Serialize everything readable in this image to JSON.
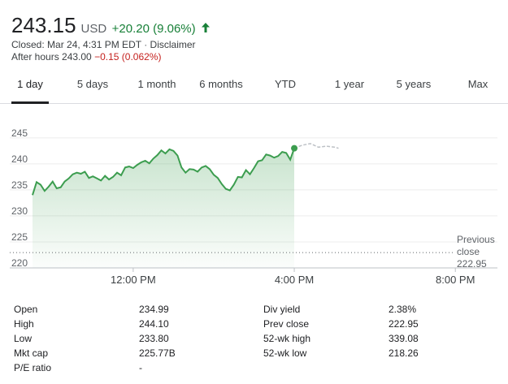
{
  "quote": {
    "price": "243.15",
    "currency": "USD",
    "change": "+20.20 (9.06%)",
    "closed_text": "Closed: Mar 24, 4:31 PM EDT",
    "separator": "·",
    "disclaimer": "Disclaimer",
    "after_hours_label": "After hours 243.00",
    "after_hours_change": "−0.15 (0.062%)",
    "up_color": "#188038",
    "down_color": "#c5221f"
  },
  "tabs": [
    "1 day",
    "5 days",
    "1 month",
    "6 months",
    "YTD",
    "1 year",
    "5 years",
    "Max"
  ],
  "active_tab": "1 day",
  "chart_data": {
    "type": "area",
    "y_ticks": [
      "245",
      "240",
      "235",
      "230",
      "225",
      "220"
    ],
    "y_tick_values": [
      245,
      240,
      235,
      230,
      225,
      220
    ],
    "ylim": [
      220,
      247
    ],
    "x_ticks": [
      "12:00 PM",
      "4:00 PM",
      "8:00 PM"
    ],
    "x_tick_values": [
      12,
      16,
      20
    ],
    "xlim": [
      9.5,
      20.5
    ],
    "previous_close_label": [
      "Previous",
      "close"
    ],
    "previous_close": 222.95,
    "previous_close_text": "222.95",
    "line_color": "#3c9d4f",
    "after_hours_color": "#bdc1c6",
    "series": [
      {
        "x": [
          9.5,
          9.6,
          9.7,
          9.8,
          9.9,
          10.0,
          10.1,
          10.2,
          10.3,
          10.4,
          10.5,
          10.6,
          10.7,
          10.8,
          10.9,
          11.0,
          11.1,
          11.2,
          11.3,
          11.4,
          11.5,
          11.6,
          11.7,
          11.8,
          11.9,
          12.0,
          12.1,
          12.2,
          12.3,
          12.4,
          12.5,
          12.6,
          12.7,
          12.8,
          12.9,
          13.0,
          13.1,
          13.2,
          13.3,
          13.4,
          13.5,
          13.6,
          13.7,
          13.8,
          13.9,
          14.0,
          14.1,
          14.2,
          14.3,
          14.4,
          14.5,
          14.6,
          14.7,
          14.8,
          14.9,
          15.0,
          15.1,
          15.2,
          15.3,
          15.4,
          15.5,
          15.6,
          15.7,
          15.8,
          15.9,
          16.0
        ],
        "y": [
          234.0,
          236.5,
          236.0,
          234.8,
          235.6,
          236.6,
          235.3,
          235.5,
          236.6,
          237.2,
          238.0,
          238.3,
          238.1,
          238.5,
          237.3,
          237.6,
          237.2,
          236.8,
          237.7,
          237.0,
          237.5,
          238.3,
          237.8,
          239.3,
          239.5,
          239.2,
          239.8,
          240.3,
          240.6,
          240.1,
          241.0,
          241.7,
          242.6,
          242.0,
          242.8,
          242.5,
          241.6,
          239.3,
          238.3,
          239.0,
          238.9,
          238.5,
          239.3,
          239.6,
          239.0,
          237.9,
          237.3,
          236.1,
          235.2,
          234.9,
          236.0,
          237.5,
          237.4,
          238.8,
          238.0,
          239.2,
          240.5,
          240.7,
          241.8,
          241.6,
          241.2,
          241.5,
          242.3,
          242.1,
          240.8,
          243.0
        ]
      },
      {
        "name": "After hours",
        "x": [
          16.0,
          16.2,
          16.4,
          16.6,
          16.8,
          17.0,
          17.1
        ],
        "y": [
          243.0,
          243.6,
          243.9,
          243.2,
          243.4,
          243.2,
          243.0
        ]
      }
    ]
  },
  "stats": {
    "left": [
      {
        "label": "Open",
        "value": "234.99"
      },
      {
        "label": "High",
        "value": "244.10"
      },
      {
        "label": "Low",
        "value": "233.80"
      },
      {
        "label": "Mkt cap",
        "value": "225.77B"
      },
      {
        "label": "P/E ratio",
        "value": "-"
      }
    ],
    "right": [
      {
        "label": "Div yield",
        "value": "2.38%"
      },
      {
        "label": "Prev close",
        "value": "222.95"
      },
      {
        "label": "52-wk high",
        "value": "339.08"
      },
      {
        "label": "52-wk low",
        "value": "218.26"
      }
    ]
  }
}
